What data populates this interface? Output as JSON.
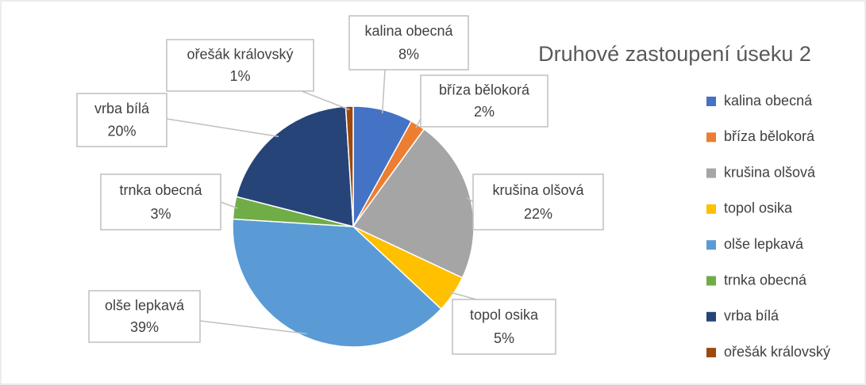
{
  "chart_data": {
    "type": "pie",
    "title": "Druhové zastoupení úseku 2",
    "categories": [
      "kalina obecná",
      "bříza bělokorá",
      "krušina olšová",
      "topol osika",
      "olše lepkavá",
      "trnka obecná",
      "vrba bílá",
      "ořešák královský"
    ],
    "values": [
      8,
      2,
      22,
      5,
      39,
      3,
      20,
      1
    ],
    "value_labels": [
      "8%",
      "2%",
      "22%",
      "5%",
      "39%",
      "3%",
      "20%",
      "1%"
    ],
    "colors": [
      "#4472c4",
      "#ed7d31",
      "#a5a5a5",
      "#ffc000",
      "#5b9bd5",
      "#70ad47",
      "#264478",
      "#9e480e"
    ],
    "legend": "right"
  }
}
